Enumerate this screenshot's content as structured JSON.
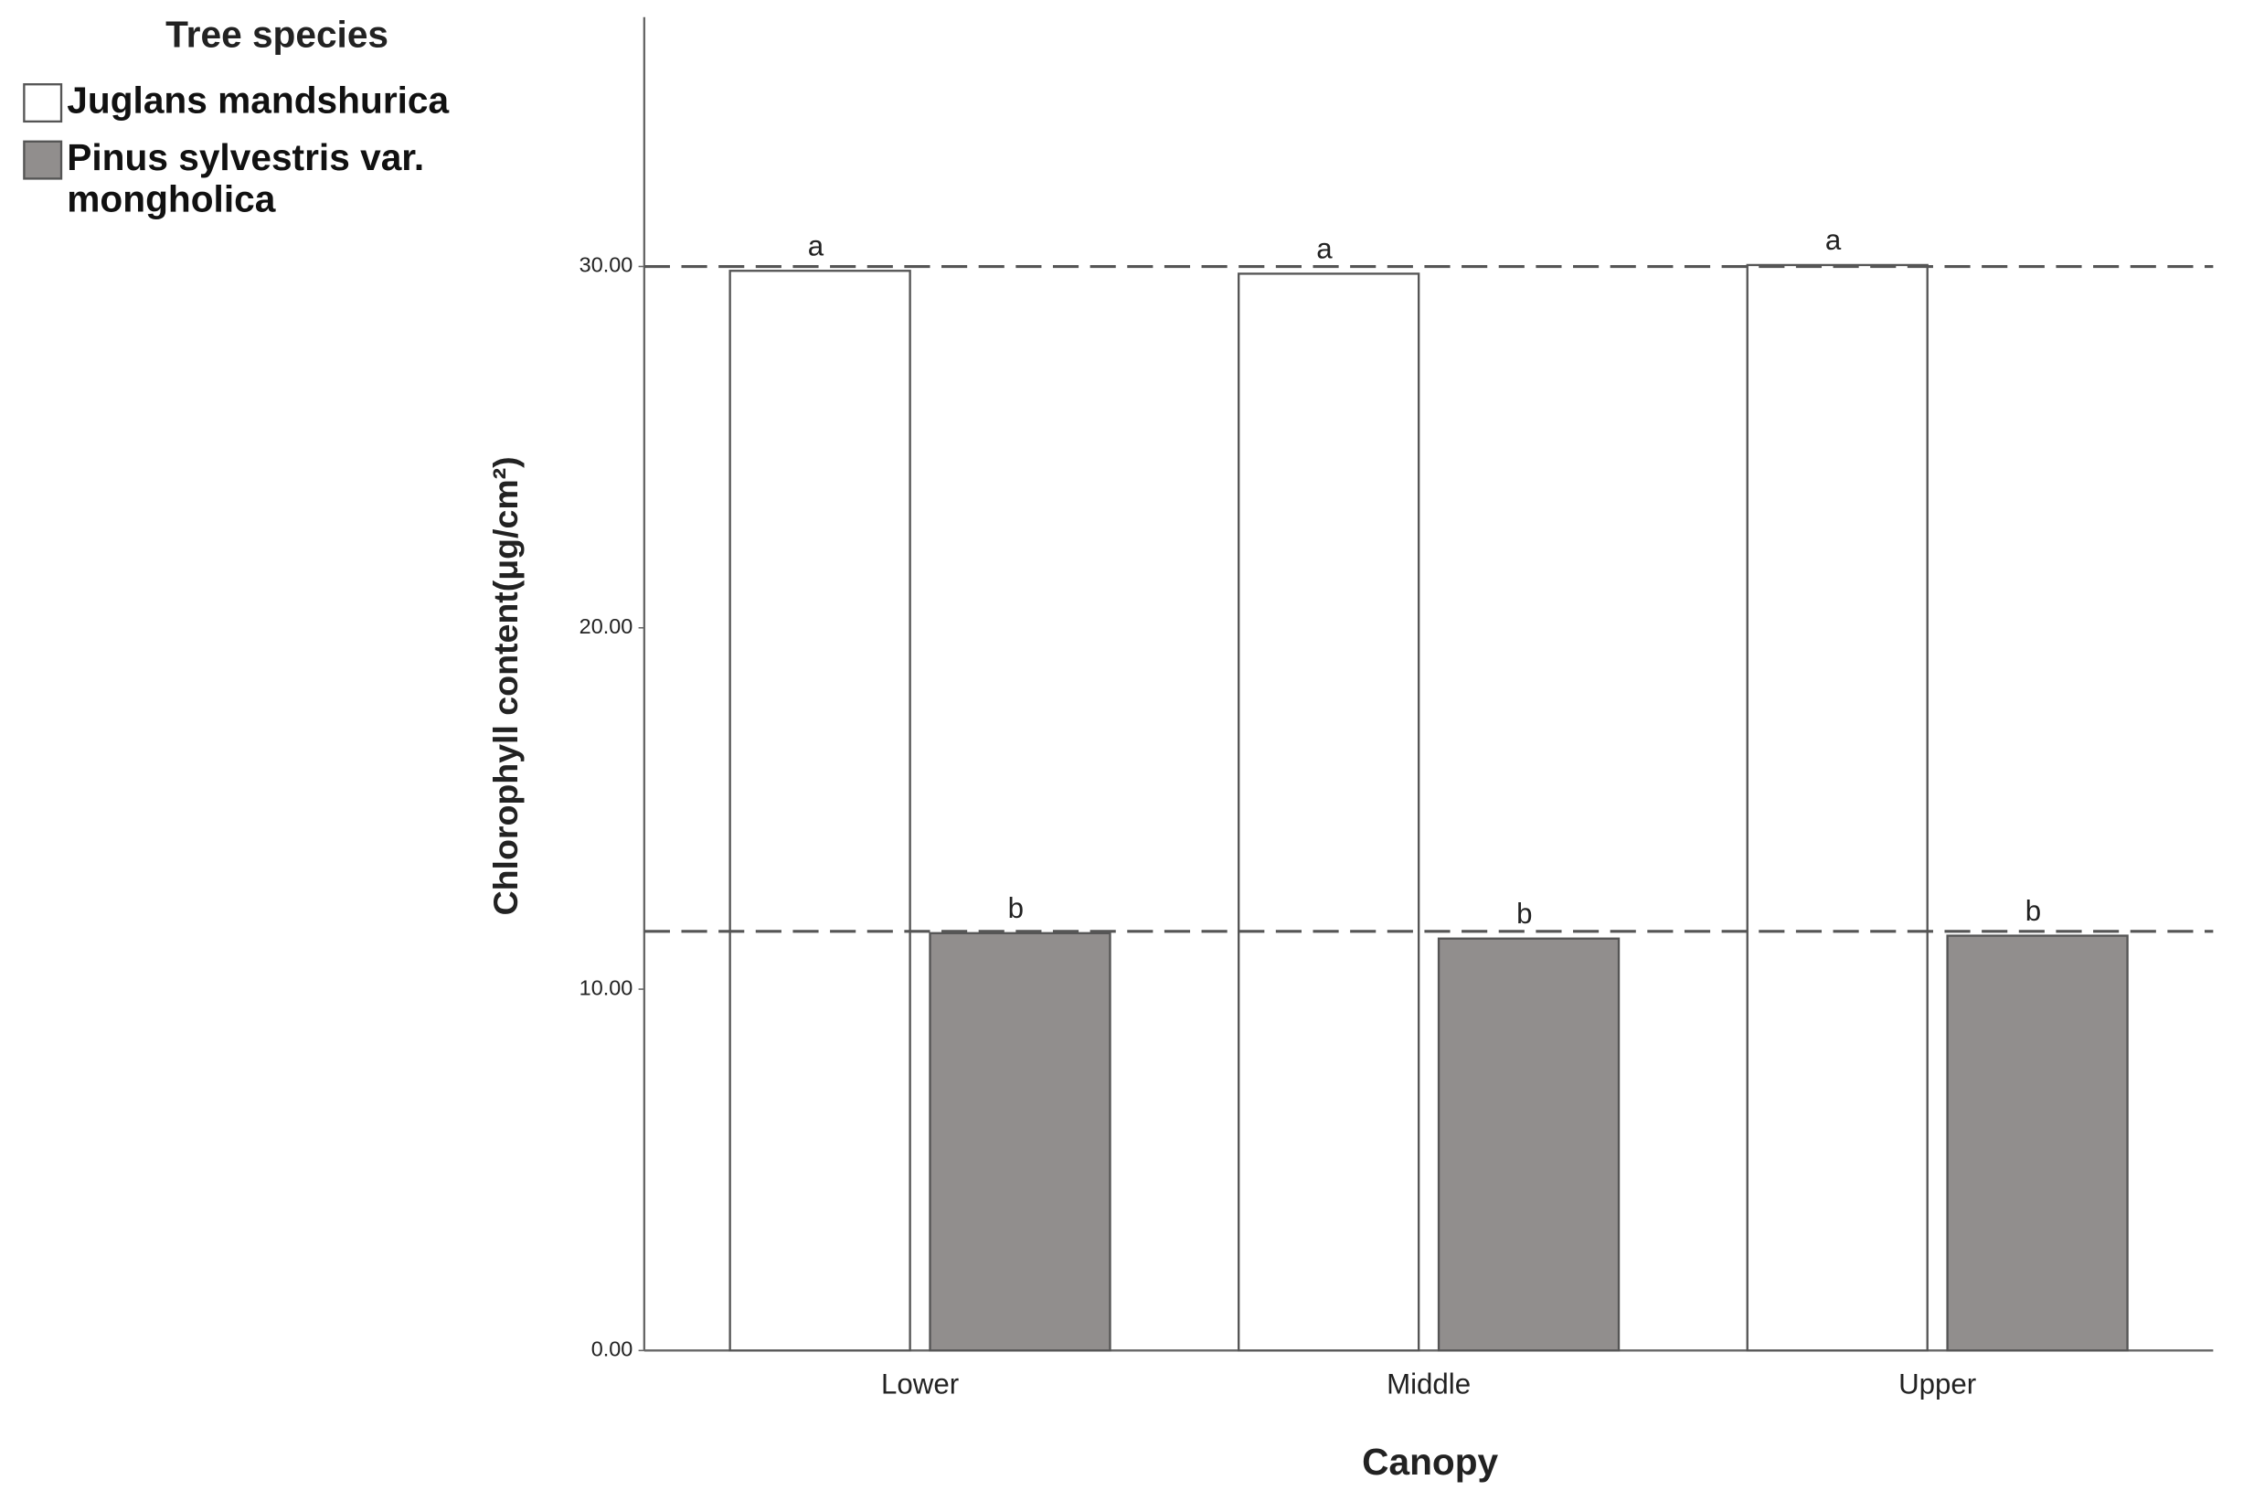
{
  "chart_data": {
    "type": "bar",
    "legend_title": "Tree species",
    "categories": [
      "Lower",
      "Middle",
      "Upper"
    ],
    "series": [
      {
        "name": "Juglans mandshurica",
        "color": "#ffffff",
        "values": [
          29.88,
          29.8,
          30.04
        ],
        "value_labels": [
          "a",
          "a",
          "a"
        ]
      },
      {
        "name": "Pinus sylvestris var. mongholica",
        "color": "#918e8d",
        "values": [
          11.55,
          11.4,
          11.48
        ],
        "value_labels": [
          "b",
          "b",
          "b"
        ]
      }
    ],
    "reference_lines": [
      30.0,
      11.6
    ],
    "xlabel": "Canopy",
    "ylabel": "Chlorophyll content(μg/cm²)",
    "ylim": [
      0,
      36.9
    ],
    "yticks": [
      {
        "value": 0,
        "label": "0.00"
      },
      {
        "value": 10,
        "label": "10.00"
      },
      {
        "value": 20,
        "label": "20.00"
      },
      {
        "value": 30,
        "label": "30.00"
      }
    ],
    "grid": false,
    "legend_position": "upper left"
  }
}
